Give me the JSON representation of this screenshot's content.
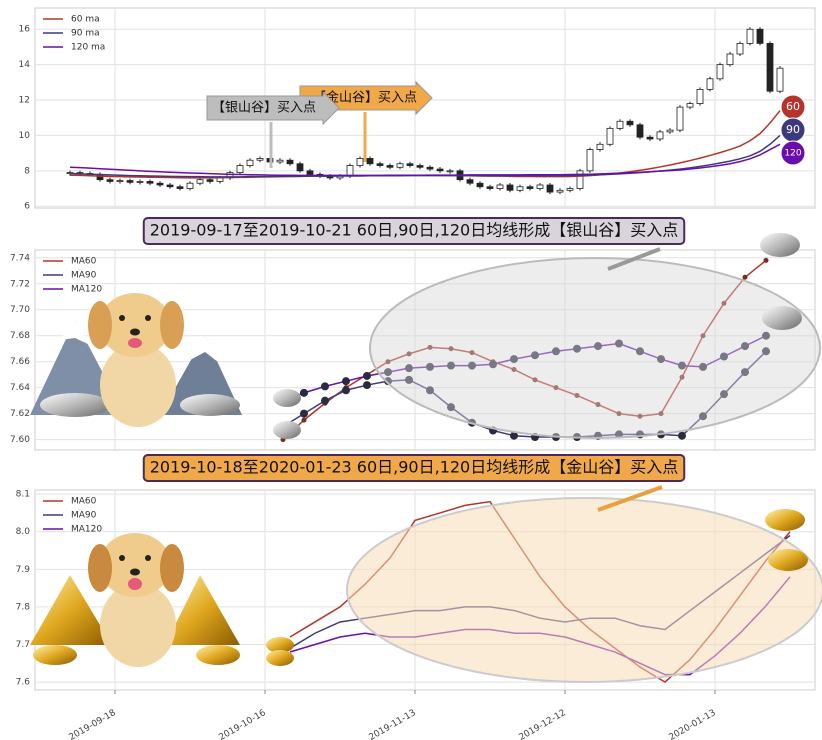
{
  "chart_data": [
    {
      "type": "candlestick",
      "legend": "upper left",
      "grid": true,
      "ylim": [
        5.9,
        17.2
      ],
      "yticks": [
        6,
        8,
        10,
        12,
        14,
        16
      ],
      "categories": [
        null,
        null,
        null,
        null,
        null,
        null,
        null,
        null,
        null,
        null,
        null,
        null,
        null,
        null,
        null,
        null,
        null,
        null,
        null,
        null,
        null,
        null,
        null,
        null,
        null,
        null,
        null,
        null,
        null,
        null,
        null,
        null,
        null,
        null,
        null,
        null,
        null,
        null,
        null,
        null,
        null,
        null,
        null,
        null,
        null,
        null,
        null,
        null,
        null,
        null,
        null,
        null,
        null,
        null,
        null,
        null,
        null,
        null,
        null,
        null,
        null,
        null,
        null,
        null,
        null,
        null,
        null,
        null,
        null,
        null,
        null,
        null
      ],
      "close": [
        7.9,
        7.85,
        7.8,
        7.5,
        7.4,
        7.45,
        7.35,
        7.4,
        7.3,
        7.2,
        7.1,
        7.0,
        7.3,
        7.5,
        7.4,
        7.6,
        7.9,
        8.3,
        8.6,
        8.7,
        8.5,
        8.6,
        8.4,
        8.0,
        7.8,
        7.7,
        7.6,
        7.7,
        8.3,
        8.7,
        8.4,
        8.3,
        8.2,
        8.4,
        8.3,
        8.2,
        8.1,
        8.0,
        8.0,
        7.5,
        7.3,
        7.1,
        7.0,
        7.2,
        6.9,
        7.1,
        7.0,
        7.2,
        6.8,
        6.9,
        7.0,
        8.0,
        9.2,
        9.5,
        10.4,
        10.8,
        10.6,
        9.9,
        9.8,
        10.2,
        10.3,
        11.6,
        11.8,
        12.6,
        13.2,
        14.0,
        14.6,
        15.2,
        16.0,
        15.2,
        12.5,
        13.8
      ],
      "series": [
        {
          "name": "60 ma",
          "label": "60",
          "color": "#b5332b",
          "values": [
            7.75,
            7.74,
            7.72,
            7.7,
            7.68,
            7.67,
            7.66,
            7.65,
            7.64,
            7.63,
            7.62,
            7.61,
            7.6,
            7.6,
            7.6,
            7.61,
            7.62,
            7.63,
            7.64,
            7.65,
            7.66,
            7.67,
            7.68,
            7.69,
            7.7,
            7.71,
            7.71,
            7.72,
            7.72,
            7.72,
            7.73,
            7.73,
            7.74,
            7.74,
            7.75,
            7.75,
            7.75,
            7.74,
            7.74,
            7.73,
            7.72,
            7.71,
            7.7,
            7.7,
            7.69,
            7.68,
            7.68,
            7.67,
            7.67,
            7.67,
            7.68,
            7.7,
            7.73,
            7.77,
            7.82,
            7.88,
            7.95,
            8.03,
            8.12,
            8.22,
            8.33,
            8.45,
            8.58,
            8.72,
            8.87,
            9.03,
            9.2,
            9.4,
            9.7,
            10.1,
            10.7,
            11.4
          ]
        },
        {
          "name": "90 ma",
          "label": "90",
          "color": "#3d3a7c",
          "values": [
            7.85,
            7.83,
            7.81,
            7.79,
            7.77,
            7.75,
            7.73,
            7.72,
            7.71,
            7.7,
            7.69,
            7.68,
            7.67,
            7.67,
            7.66,
            7.66,
            7.66,
            7.66,
            7.67,
            7.67,
            7.68,
            7.68,
            7.69,
            7.69,
            7.7,
            7.7,
            7.7,
            7.71,
            7.71,
            7.71,
            7.72,
            7.72,
            7.72,
            7.72,
            7.73,
            7.73,
            7.73,
            7.73,
            7.73,
            7.73,
            7.73,
            7.73,
            7.72,
            7.72,
            7.72,
            7.72,
            7.72,
            7.72,
            7.72,
            7.72,
            7.73,
            7.74,
            7.76,
            7.78,
            7.8,
            7.83,
            7.86,
            7.9,
            7.94,
            7.99,
            8.04,
            8.1,
            8.17,
            8.25,
            8.34,
            8.44,
            8.55,
            8.68,
            8.85,
            9.1,
            9.5,
            10.0
          ]
        },
        {
          "name": "120 ma",
          "label": "120",
          "color": "#6a0dad",
          "values": [
            8.2,
            8.18,
            8.15,
            8.12,
            8.09,
            8.06,
            8.03,
            8.0,
            7.97,
            7.95,
            7.92,
            7.9,
            7.88,
            7.86,
            7.84,
            7.82,
            7.8,
            7.79,
            7.78,
            7.77,
            7.76,
            7.75,
            7.75,
            7.74,
            7.74,
            7.74,
            7.74,
            7.74,
            7.74,
            7.74,
            7.74,
            7.74,
            7.75,
            7.75,
            7.75,
            7.75,
            7.76,
            7.76,
            7.76,
            7.76,
            7.77,
            7.77,
            7.77,
            7.77,
            7.77,
            7.77,
            7.78,
            7.78,
            7.78,
            7.78,
            7.79,
            7.8,
            7.81,
            7.83,
            7.85,
            7.87,
            7.89,
            7.92,
            7.95,
            7.98,
            8.01,
            8.05,
            8.1,
            8.16,
            8.23,
            8.31,
            8.4,
            8.52,
            8.68,
            8.9,
            9.2,
            9.5
          ]
        }
      ],
      "annotations": [
        "【金山谷】买入点",
        "【银山谷】买入点"
      ]
    },
    {
      "type": "line",
      "legend": "upper left",
      "grid": true,
      "markers": true,
      "title": "2019-09-17至2019-10-21 60日,90日,120日均线形成【银山谷】买入点",
      "ylim": [
        7.592,
        7.746
      ],
      "yticks": [
        {
          "value": 7.6,
          "label": "7.60"
        },
        7.62,
        7.64,
        7.66,
        7.68,
        {
          "value": 7.7,
          "label": "7.70"
        },
        7.72,
        7.74
      ],
      "categories": [
        null,
        null,
        null,
        null,
        null,
        null,
        null,
        null,
        null,
        null,
        null,
        null,
        null,
        null,
        null,
        null,
        null,
        null,
        null,
        null,
        null,
        null,
        null,
        null
      ],
      "series": [
        {
          "name": "MA60",
          "color": "#b5332b",
          "values": [
            7.6,
            7.615,
            7.628,
            7.64,
            7.65,
            7.66,
            7.666,
            7.671,
            7.67,
            7.667,
            7.66,
            7.654,
            7.646,
            7.64,
            7.634,
            7.627,
            7.62,
            7.618,
            7.62,
            7.648,
            7.68,
            7.705,
            7.725,
            7.738
          ]
        },
        {
          "name": "MA90",
          "color": "#3d3a7c",
          "values": [
            7.61,
            7.62,
            7.63,
            7.638,
            7.642,
            7.645,
            7.646,
            7.638,
            7.625,
            7.613,
            7.607,
            7.603,
            7.602,
            7.602,
            7.602,
            7.603,
            7.604,
            7.604,
            7.604,
            7.603,
            7.618,
            7.635,
            7.652,
            7.668
          ]
        },
        {
          "name": "MA120",
          "color": "#6a0dad",
          "values": [
            7.63,
            7.636,
            7.641,
            7.645,
            7.649,
            7.652,
            7.655,
            7.656,
            7.657,
            7.657,
            7.658,
            7.662,
            7.665,
            7.668,
            7.67,
            7.672,
            7.674,
            7.668,
            7.662,
            7.657,
            7.656,
            7.664,
            7.672,
            7.68
          ]
        }
      ]
    },
    {
      "type": "line",
      "legend": "upper left",
      "grid": true,
      "title": "2019-10-18至2020-01-23 60日,90日,120日均线形成【金山谷】买入点",
      "ylim": [
        7.579,
        8.111
      ],
      "yticks": [
        7.6,
        7.7,
        7.8,
        7.9,
        {
          "value": 8,
          "label": "8.0"
        },
        8.1
      ],
      "categories": [
        null,
        null,
        null,
        "2019-09-18",
        null,
        null,
        null,
        null,
        null,
        "2019-10-16",
        null,
        null,
        null,
        null,
        null,
        "2019-11-13",
        null,
        null,
        null,
        null,
        null,
        "2019-12-12",
        null,
        null,
        null,
        null,
        null,
        "2020-01-13",
        null,
        null,
        null,
        null
      ],
      "series": [
        {
          "name": "MA60",
          "color": "#b5332b",
          "values": [
            null,
            null,
            null,
            null,
            null,
            null,
            null,
            null,
            null,
            null,
            7.72,
            7.76,
            7.8,
            7.86,
            7.93,
            8.03,
            8.05,
            8.07,
            8.08,
            7.98,
            7.88,
            7.8,
            7.74,
            7.69,
            7.64,
            7.6,
            7.66,
            7.74,
            7.83,
            7.92,
            8.0,
            null
          ]
        },
        {
          "name": "MA90",
          "color": "#3d3a7c",
          "values": [
            null,
            null,
            null,
            null,
            null,
            null,
            null,
            null,
            null,
            null,
            7.69,
            7.73,
            7.76,
            7.77,
            7.78,
            7.79,
            7.79,
            7.8,
            7.8,
            7.79,
            7.77,
            7.76,
            7.77,
            7.77,
            7.75,
            7.74,
            7.79,
            7.84,
            7.89,
            7.94,
            7.99,
            null
          ]
        },
        {
          "name": "MA120",
          "color": "#6a0dad",
          "values": [
            null,
            null,
            null,
            null,
            null,
            null,
            null,
            null,
            null,
            null,
            7.68,
            7.7,
            7.72,
            7.73,
            7.72,
            7.72,
            7.73,
            7.74,
            7.74,
            7.73,
            7.73,
            7.72,
            7.7,
            7.68,
            7.65,
            7.62,
            7.62,
            7.67,
            7.73,
            7.8,
            7.88,
            null
          ]
        }
      ]
    }
  ]
}
